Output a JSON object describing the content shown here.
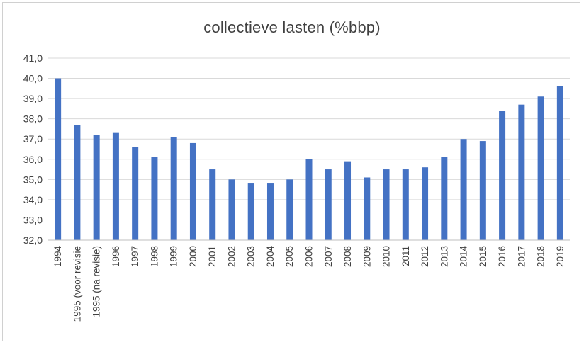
{
  "chart_data": {
    "type": "bar",
    "title": "collectieve lasten (%bbp)",
    "xlabel": "",
    "ylabel": "",
    "categories": [
      "1994",
      "1995 (voor revisie",
      "1995 (na revisie)",
      "1996",
      "1997",
      "1998",
      "1999",
      "2000",
      "2001",
      "2002",
      "2003",
      "2004",
      "2005",
      "2006",
      "2007",
      "2008",
      "2009",
      "2010",
      "2011",
      "2012",
      "2013",
      "2014",
      "2015",
      "2016",
      "2017",
      "2018",
      "2019"
    ],
    "values": [
      40.0,
      37.7,
      37.2,
      37.3,
      36.6,
      36.1,
      37.1,
      36.8,
      35.5,
      35.0,
      34.8,
      34.8,
      35.0,
      36.0,
      35.5,
      35.9,
      35.1,
      35.5,
      35.5,
      35.6,
      36.1,
      37.0,
      36.9,
      38.4,
      38.7,
      39.1,
      39.6
    ],
    "ylim": [
      32.0,
      41.0
    ],
    "yticks": [
      "32,0",
      "33,0",
      "34,0",
      "35,0",
      "36,0",
      "37,0",
      "38,0",
      "39,0",
      "40,0",
      "41,0"
    ],
    "grid": true,
    "legend": "none",
    "bar_color": "#4472c4",
    "grid_color": "#d9d9d9"
  }
}
